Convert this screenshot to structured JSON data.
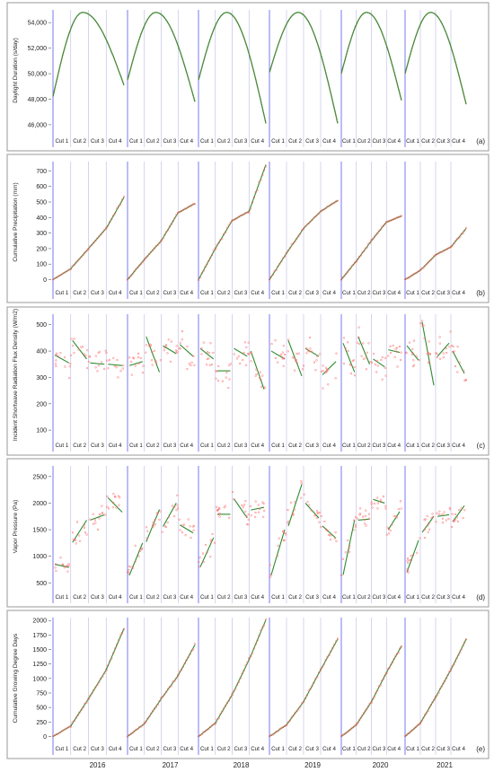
{
  "years": [
    "2016",
    "2017",
    "2018",
    "2019",
    "2020",
    "2021"
  ],
  "cut_labels": [
    "Cut 1",
    "Cut 2",
    "Cut 3",
    "Cut 4"
  ],
  "colors": {
    "season_line": "#6a6af0",
    "cut_line": "#b8b8e8",
    "points": "#ff6b6b",
    "trend": "#2e8b2e",
    "frame": "#9a9a9a"
  },
  "chart_data": [
    {
      "type": "scatter",
      "panel_letter": "(a)",
      "ylabel": "Daylight Duration  (s/day)",
      "yticks": [
        46000,
        48000,
        50000,
        52000,
        54000
      ],
      "ytick_labels": [
        "46,000",
        "48,000",
        "50,000",
        "52,000",
        "54,000"
      ],
      "ylim": [
        45500,
        55000
      ],
      "series_kind": "daylight",
      "start": [
        48200,
        49500,
        49500,
        50100,
        50000,
        50000
      ],
      "peak": [
        54800,
        54800,
        54800,
        54800,
        54800,
        54800
      ],
      "end": [
        49100,
        47800,
        46100,
        46100,
        47900,
        47600
      ]
    },
    {
      "type": "scatter",
      "panel_letter": "(b)",
      "ylabel": "Cumulative Precipitation (mm)",
      "yticks": [
        0,
        100,
        200,
        300,
        400,
        500,
        600,
        700
      ],
      "ylim": [
        -20,
        760
      ],
      "series_kind": "cumulative",
      "cut_values": [
        [
          0,
          70,
          200,
          330,
          530
        ],
        [
          0,
          130,
          250,
          430,
          490
        ],
        [
          0,
          200,
          380,
          440,
          740
        ],
        [
          0,
          170,
          330,
          440,
          510
        ],
        [
          0,
          120,
          250,
          370,
          410
        ],
        [
          0,
          60,
          160,
          210,
          330
        ]
      ]
    },
    {
      "type": "scatter",
      "panel_letter": "(c)",
      "ylabel": "Incident Shortwave Radiation Flux Density (W/m2)",
      "yticks": [
        100,
        200,
        300,
        400,
        500
      ],
      "ylim": [
        80,
        540
      ],
      "series_kind": "noisy",
      "noise": 80,
      "segments": [
        [
          [
            385,
            355
          ],
          [
            440,
            370
          ],
          [
            355,
            350
          ],
          [
            350,
            345
          ]
        ],
        [
          [
            345,
            360
          ],
          [
            455,
            320
          ],
          [
            420,
            390
          ],
          [
            425,
            380
          ]
        ],
        [
          [
            410,
            370
          ],
          [
            325,
            325
          ],
          [
            410,
            380
          ],
          [
            400,
            255
          ]
        ],
        [
          [
            400,
            370
          ],
          [
            440,
            305
          ],
          [
            410,
            380
          ],
          [
            310,
            360
          ]
        ],
        [
          [
            430,
            320
          ],
          [
            455,
            350
          ],
          [
            370,
            340
          ],
          [
            405,
            395
          ]
        ],
        [
          [
            420,
            365
          ],
          [
            510,
            270
          ],
          [
            380,
            430
          ],
          [
            400,
            315
          ]
        ]
      ]
    },
    {
      "type": "scatter",
      "panel_letter": "(d)",
      "ylabel": "Vapor Pressure (Pa)",
      "yticks": [
        500,
        1000,
        1500,
        2000,
        2500
      ],
      "ylim": [
        420,
        2700
      ],
      "series_kind": "noisy",
      "noise": 320,
      "segments": [
        [
          [
            850,
            790
          ],
          [
            1260,
            1680
          ],
          [
            1680,
            1780
          ],
          [
            2100,
            1830
          ]
        ],
        [
          [
            640,
            1250
          ],
          [
            1270,
            1880
          ],
          [
            1560,
            2000
          ],
          [
            1590,
            1440
          ]
        ],
        [
          [
            800,
            1350
          ],
          [
            1790,
            1790
          ],
          [
            2080,
            1720
          ],
          [
            1870,
            1920
          ]
        ],
        [
          [
            650,
            1500
          ],
          [
            1570,
            2350
          ],
          [
            2000,
            1720
          ],
          [
            1570,
            1340
          ]
        ],
        [
          [
            650,
            1680
          ],
          [
            1680,
            1700
          ],
          [
            2070,
            2000
          ],
          [
            1500,
            1840
          ]
        ],
        [
          [
            700,
            1300
          ],
          [
            1450,
            1750
          ],
          [
            1750,
            1780
          ],
          [
            1650,
            1950
          ]
        ]
      ]
    },
    {
      "type": "scatter",
      "panel_letter": "(e)",
      "ylabel": "Cumulative Growing Degree Days",
      "yticks": [
        0,
        250,
        500,
        750,
        1000,
        1250,
        1500,
        1750,
        2000
      ],
      "ylim": [
        -40,
        2050
      ],
      "series_kind": "cumulative",
      "cut_values": [
        [
          0,
          180,
          650,
          1150,
          1860
        ],
        [
          0,
          220,
          650,
          1050,
          1580
        ],
        [
          0,
          230,
          720,
          1320,
          2010
        ],
        [
          0,
          200,
          600,
          1150,
          1680
        ],
        [
          0,
          200,
          600,
          1100,
          1560
        ],
        [
          0,
          230,
          680,
          1150,
          1680
        ]
      ]
    }
  ]
}
